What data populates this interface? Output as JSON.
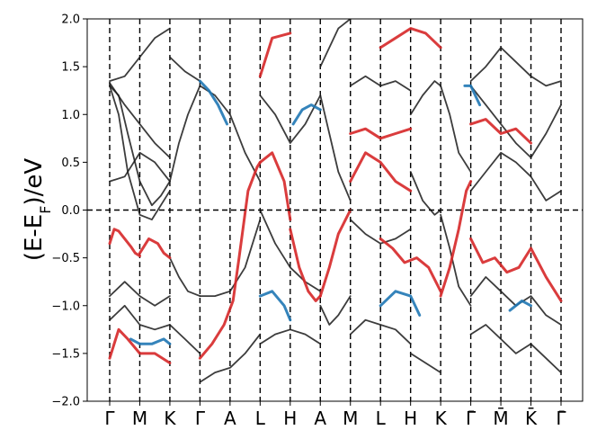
{
  "chart_data": {
    "type": "line",
    "title": "",
    "xlabel": "",
    "ylabel": {
      "prefix": "(E-E",
      "subscript": "F",
      "suffix": ")/eV"
    },
    "ylim": [
      -2.0,
      2.0
    ],
    "yticks": [
      {
        "value": 2.0,
        "label": "2.0"
      },
      {
        "value": 1.5,
        "label": "1.5"
      },
      {
        "value": 1.0,
        "label": "1.0"
      },
      {
        "value": 0.5,
        "label": "0.5"
      },
      {
        "value": 0.0,
        "label": "0.0"
      },
      {
        "value": -0.5,
        "label": "−0.5"
      },
      {
        "value": -1.0,
        "label": "−1.0"
      },
      {
        "value": -1.5,
        "label": "−1.5"
      },
      {
        "value": -2.0,
        "label": "−2.0"
      }
    ],
    "xlim": [
      0,
      15
    ],
    "kpoints": [
      {
        "label": "Γ",
        "x": 0
      },
      {
        "label": "M",
        "x": 1
      },
      {
        "label": "K",
        "x": 2
      },
      {
        "label": "Γ",
        "x": 3
      },
      {
        "label": "A",
        "x": 4
      },
      {
        "label": "L",
        "x": 5
      },
      {
        "label": "H",
        "x": 6
      },
      {
        "label": "A",
        "x": 7
      },
      {
        "label": "M",
        "x": 8
      },
      {
        "label": "L",
        "x": 9
      },
      {
        "label": "H",
        "x": 10
      },
      {
        "label": "K",
        "x": 11
      },
      {
        "label": "Γ̄",
        "x": 12
      },
      {
        "label": "M̄",
        "x": 13
      },
      {
        "label": "K̄",
        "x": 14
      },
      {
        "label": "Γ̄",
        "x": 15
      }
    ],
    "fermi_level": 0.0,
    "grid": false,
    "colors": {
      "band": "#1a1a1a",
      "red_character": "#d62728",
      "blue_character": "#1f77b4",
      "guide": "#000000"
    },
    "series": [
      {
        "color": "red",
        "x": [
          0.0,
          0.15,
          0.3,
          0.5,
          0.7,
          0.85,
          1.0
        ],
        "y": [
          -0.35,
          -0.2,
          -0.22,
          -0.3,
          -0.38,
          -0.45,
          -0.48
        ]
      },
      {
        "color": "red",
        "x": [
          1.0,
          1.3,
          1.6,
          1.8,
          2.0
        ],
        "y": [
          -0.45,
          -0.3,
          -0.35,
          -0.45,
          -0.5
        ]
      },
      {
        "color": "red",
        "x": [
          0.0,
          0.3,
          0.6,
          1.0,
          1.5,
          2.0
        ],
        "y": [
          -1.55,
          -1.25,
          -1.35,
          -1.5,
          -1.5,
          -1.6
        ]
      },
      {
        "color": "red",
        "x": [
          3.0,
          3.4,
          3.8,
          4.1,
          4.3,
          4.6,
          4.9,
          5.0
        ],
        "y": [
          -1.55,
          -1.4,
          -1.2,
          -0.95,
          -0.5,
          0.2,
          0.45,
          0.5
        ]
      },
      {
        "color": "red",
        "x": [
          5.0,
          5.4,
          5.8,
          6.0
        ],
        "y": [
          0.5,
          0.6,
          0.3,
          -0.1
        ]
      },
      {
        "color": "red",
        "x": [
          6.0,
          6.3,
          6.6,
          6.85,
          7.0
        ],
        "y": [
          -0.2,
          -0.6,
          -0.85,
          -0.95,
          -0.9
        ]
      },
      {
        "color": "red",
        "x": [
          7.0,
          7.3,
          7.6,
          8.0
        ],
        "y": [
          -0.9,
          -0.6,
          -0.25,
          0.0
        ]
      },
      {
        "color": "red",
        "x": [
          8.0,
          8.5,
          9.0,
          9.5,
          10.0
        ],
        "y": [
          0.3,
          0.6,
          0.5,
          0.3,
          0.2
        ]
      },
      {
        "color": "red",
        "x": [
          8.0,
          8.5,
          9.0,
          9.5,
          10.0
        ],
        "y": [
          0.8,
          0.85,
          0.75,
          0.8,
          0.85
        ]
      },
      {
        "color": "red",
        "x": [
          9.0,
          9.4,
          9.8,
          10.2,
          10.6,
          11.0
        ],
        "y": [
          -0.3,
          -0.4,
          -0.55,
          -0.5,
          -0.6,
          -0.85
        ]
      },
      {
        "color": "red",
        "x": [
          11.0,
          11.3,
          11.6,
          11.85,
          12.0
        ],
        "y": [
          -0.9,
          -0.6,
          -0.2,
          0.2,
          0.3
        ]
      },
      {
        "color": "red",
        "x": [
          12.0,
          12.5,
          13.0,
          13.5,
          14.0
        ],
        "y": [
          0.9,
          0.95,
          0.8,
          0.85,
          0.7
        ]
      },
      {
        "color": "red",
        "x": [
          12.0,
          12.4,
          12.8,
          13.2,
          13.6,
          14.0,
          14.5,
          15.0
        ],
        "y": [
          -0.3,
          -0.55,
          -0.5,
          -0.65,
          -0.6,
          -0.4,
          -0.7,
          -0.95
        ]
      },
      {
        "color": "red",
        "x": [
          5.0,
          5.4,
          6.0
        ],
        "y": [
          1.4,
          1.8,
          1.85
        ]
      },
      {
        "color": "red",
        "x": [
          9.0,
          9.5,
          10.0,
          10.5,
          11.0
        ],
        "y": [
          1.7,
          1.8,
          1.9,
          1.85,
          1.7
        ]
      },
      {
        "color": "blue",
        "x": [
          0.7,
          1.0,
          1.4,
          1.8,
          2.0
        ],
        "y": [
          -1.35,
          -1.4,
          -1.4,
          -1.35,
          -1.4
        ]
      },
      {
        "color": "blue",
        "x": [
          3.0,
          3.3,
          3.6,
          3.9
        ],
        "y": [
          1.35,
          1.25,
          1.1,
          0.9
        ]
      },
      {
        "color": "blue",
        "x": [
          5.0,
          5.4,
          5.8,
          6.0
        ],
        "y": [
          -0.9,
          -0.85,
          -1.0,
          -1.15
        ]
      },
      {
        "color": "blue",
        "x": [
          6.1,
          6.4,
          6.7,
          7.0
        ],
        "y": [
          0.9,
          1.05,
          1.1,
          1.05
        ]
      },
      {
        "color": "blue",
        "x": [
          9.0,
          9.5,
          10.0,
          10.3
        ],
        "y": [
          -1.0,
          -0.85,
          -0.9,
          -1.1
        ]
      },
      {
        "color": "blue",
        "x": [
          13.3,
          13.7,
          14.0
        ],
        "y": [
          -1.05,
          -0.95,
          -1.0
        ]
      },
      {
        "color": "blue",
        "x": [
          11.8,
          12.0,
          12.3
        ],
        "y": [
          1.3,
          1.3,
          1.1
        ]
      },
      {
        "color": "black",
        "x": [
          0.0,
          0.5,
          1.0,
          1.5,
          2.0
        ],
        "y": [
          0.3,
          0.35,
          0.6,
          0.5,
          0.3
        ]
      },
      {
        "color": "black",
        "x": [
          0.0,
          0.3,
          0.6,
          1.0,
          1.4,
          1.7,
          2.0
        ],
        "y": [
          1.3,
          1.2,
          0.8,
          0.3,
          0.05,
          0.15,
          0.3
        ]
      },
      {
        "color": "black",
        "x": [
          0.0,
          0.3,
          0.6,
          1.0,
          1.4,
          1.7,
          2.0
        ],
        "y": [
          1.3,
          1.0,
          0.4,
          -0.05,
          -0.1,
          0.05,
          0.2
        ]
      },
      {
        "color": "black",
        "x": [
          0.0,
          0.5,
          1.0,
          1.5,
          2.0
        ],
        "y": [
          -0.9,
          -0.75,
          -0.9,
          -1.0,
          -0.9
        ]
      },
      {
        "color": "black",
        "x": [
          0.0,
          0.5,
          1.0,
          1.5,
          2.0
        ],
        "y": [
          -1.15,
          -1.0,
          -1.2,
          -1.25,
          -1.2
        ]
      },
      {
        "color": "black",
        "x": [
          0.0,
          0.5,
          1.0,
          1.5,
          2.0
        ],
        "y": [
          1.35,
          1.4,
          1.6,
          1.8,
          1.9
        ]
      },
      {
        "color": "black",
        "x": [
          0.0,
          0.5,
          1.0,
          1.5,
          2.0
        ],
        "y": [
          1.33,
          1.1,
          0.9,
          0.7,
          0.55
        ]
      },
      {
        "color": "black",
        "x": [
          2.0,
          2.3,
          2.6,
          3.0
        ],
        "y": [
          0.3,
          0.7,
          1.0,
          1.3
        ]
      },
      {
        "color": "black",
        "x": [
          2.0,
          2.3,
          2.6,
          3.0
        ],
        "y": [
          -0.5,
          -0.7,
          -0.85,
          -0.9
        ]
      },
      {
        "color": "black",
        "x": [
          2.0,
          2.5,
          3.0
        ],
        "y": [
          1.6,
          1.45,
          1.35
        ]
      },
      {
        "color": "black",
        "x": [
          2.0,
          2.5,
          3.0
        ],
        "y": [
          -1.2,
          -1.35,
          -1.5
        ]
      },
      {
        "color": "black",
        "x": [
          3.0,
          3.5,
          4.0,
          4.5,
          5.0
        ],
        "y": [
          -0.9,
          -0.9,
          -0.85,
          -0.6,
          -0.1
        ]
      },
      {
        "color": "black",
        "x": [
          3.0,
          3.5,
          4.0,
          4.5,
          5.0
        ],
        "y": [
          1.3,
          1.2,
          1.0,
          0.6,
          0.3
        ]
      },
      {
        "color": "black",
        "x": [
          3.0,
          3.5,
          4.0,
          4.5,
          5.0
        ],
        "y": [
          -1.8,
          -1.7,
          -1.65,
          -1.5,
          -1.3
        ]
      },
      {
        "color": "black",
        "x": [
          5.0,
          5.5,
          6.0,
          6.5,
          7.0
        ],
        "y": [
          0.0,
          -0.35,
          -0.6,
          -0.75,
          -0.85
        ]
      },
      {
        "color": "black",
        "x": [
          5.0,
          5.5,
          6.0,
          6.5,
          7.0
        ],
        "y": [
          1.2,
          1.0,
          0.7,
          0.9,
          1.2
        ]
      },
      {
        "color": "black",
        "x": [
          5.0,
          5.5,
          6.0,
          6.5,
          7.0
        ],
        "y": [
          -1.4,
          -1.3,
          -1.25,
          -1.3,
          -1.4
        ]
      },
      {
        "color": "black",
        "x": [
          7.0,
          7.3,
          7.6,
          8.0
        ],
        "y": [
          1.2,
          0.8,
          0.4,
          0.1
        ]
      },
      {
        "color": "black",
        "x": [
          7.0,
          7.3,
          7.6,
          8.0
        ],
        "y": [
          -1.0,
          -1.2,
          -1.1,
          -0.9
        ]
      },
      {
        "color": "black",
        "x": [
          7.0,
          7.3,
          7.6,
          8.0
        ],
        "y": [
          1.5,
          1.7,
          1.9,
          2.0
        ]
      },
      {
        "color": "black",
        "x": [
          8.0,
          8.5,
          9.0,
          9.5,
          10.0
        ],
        "y": [
          -0.1,
          -0.25,
          -0.35,
          -0.3,
          -0.2
        ]
      },
      {
        "color": "black",
        "x": [
          8.0,
          8.5,
          9.0,
          9.5,
          10.0
        ],
        "y": [
          1.3,
          1.4,
          1.3,
          1.35,
          1.25
        ]
      },
      {
        "color": "black",
        "x": [
          8.0,
          8.5,
          9.0,
          9.5,
          10.0
        ],
        "y": [
          -1.3,
          -1.15,
          -1.2,
          -1.25,
          -1.4
        ]
      },
      {
        "color": "black",
        "x": [
          10.0,
          10.4,
          10.8,
          11.0
        ],
        "y": [
          0.4,
          0.1,
          -0.05,
          0.0
        ]
      },
      {
        "color": "black",
        "x": [
          10.0,
          10.4,
          10.8,
          11.0
        ],
        "y": [
          1.0,
          1.2,
          1.35,
          1.3
        ]
      },
      {
        "color": "black",
        "x": [
          10.0,
          10.5,
          11.0
        ],
        "y": [
          -1.5,
          -1.6,
          -1.7
        ]
      },
      {
        "color": "black",
        "x": [
          11.0,
          11.3,
          11.6,
          12.0
        ],
        "y": [
          1.3,
          1.0,
          0.6,
          0.4
        ]
      },
      {
        "color": "black",
        "x": [
          11.0,
          11.3,
          11.6,
          12.0
        ],
        "y": [
          -0.05,
          -0.4,
          -0.8,
          -1.0
        ]
      },
      {
        "color": "black",
        "x": [
          12.0,
          12.5,
          13.0,
          13.5,
          14.0,
          14.5,
          15.0
        ],
        "y": [
          1.3,
          1.1,
          0.9,
          0.7,
          0.55,
          0.8,
          1.1
        ]
      },
      {
        "color": "black",
        "x": [
          12.0,
          12.5,
          13.0,
          13.5,
          14.0,
          14.5,
          15.0
        ],
        "y": [
          0.2,
          0.4,
          0.6,
          0.5,
          0.35,
          0.1,
          0.2
        ]
      },
      {
        "color": "black",
        "x": [
          12.0,
          12.5,
          13.0,
          13.5,
          14.0,
          14.5,
          15.0
        ],
        "y": [
          -0.9,
          -0.7,
          -0.85,
          -1.0,
          -0.9,
          -1.1,
          -1.2
        ]
      },
      {
        "color": "black",
        "x": [
          12.0,
          12.5,
          13.0,
          13.5,
          14.0,
          14.5,
          15.0
        ],
        "y": [
          -1.3,
          -1.2,
          -1.35,
          -1.5,
          -1.4,
          -1.55,
          -1.7
        ]
      },
      {
        "color": "black",
        "x": [
          12.0,
          12.5,
          13.0,
          13.5,
          14.0,
          14.5,
          15.0
        ],
        "y": [
          1.35,
          1.5,
          1.7,
          1.55,
          1.4,
          1.3,
          1.35
        ]
      }
    ]
  }
}
